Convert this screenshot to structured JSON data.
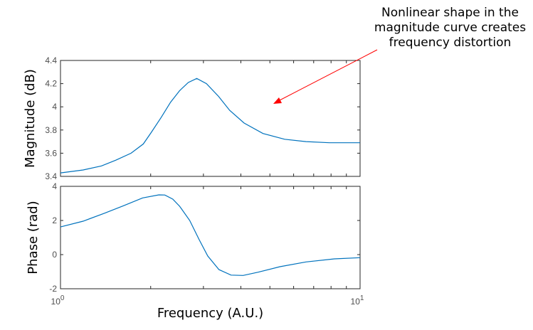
{
  "annotation": {
    "text": "Nonlinear shape in the magnitude curve creates frequency distortion",
    "arrow_color": "#ff0000"
  },
  "chart_data": [
    {
      "type": "line",
      "ylabel": "Magnitude (dB)",
      "xscale": "log",
      "xlim": [
        1,
        10
      ],
      "ylim": [
        3.4,
        4.4
      ],
      "yticks": [
        "3.4",
        "3.6",
        "3.8",
        "4",
        "4.2",
        "4.4"
      ],
      "color": "#0072bd",
      "x": [
        1.0,
        1.19,
        1.37,
        1.53,
        1.72,
        1.89,
        2.01,
        2.17,
        2.33,
        2.5,
        2.67,
        2.85,
        3.07,
        3.37,
        3.67,
        4.1,
        4.74,
        5.6,
        6.6,
        7.9,
        10
      ],
      "y": [
        3.43,
        3.455,
        3.49,
        3.54,
        3.6,
        3.68,
        3.78,
        3.91,
        4.04,
        4.14,
        4.21,
        4.245,
        4.2,
        4.09,
        3.97,
        3.86,
        3.77,
        3.72,
        3.7,
        3.69,
        3.69
      ]
    },
    {
      "type": "line",
      "xlabel": "Frequency (A.U.)",
      "ylabel": "Phase (rad)",
      "xscale": "log",
      "xlim": [
        1,
        10
      ],
      "ylim": [
        -2,
        4
      ],
      "yticks": [
        "-2",
        "0",
        "2",
        "4"
      ],
      "xticks": [
        {
          "base": "10",
          "exp": "0"
        },
        {
          "base": "10",
          "exp": "1"
        }
      ],
      "color": "#0072bd",
      "x": [
        1.0,
        1.19,
        1.4,
        1.62,
        1.88,
        2.13,
        2.23,
        2.37,
        2.5,
        2.7,
        2.9,
        3.1,
        3.38,
        3.71,
        4.07,
        4.57,
        5.4,
        6.6,
        8.2,
        10
      ],
      "y": [
        1.62,
        1.96,
        2.42,
        2.86,
        3.32,
        3.5,
        3.49,
        3.25,
        2.83,
        2.0,
        0.89,
        -0.08,
        -0.88,
        -1.2,
        -1.22,
        -1.03,
        -0.71,
        -0.43,
        -0.25,
        -0.18
      ]
    }
  ]
}
